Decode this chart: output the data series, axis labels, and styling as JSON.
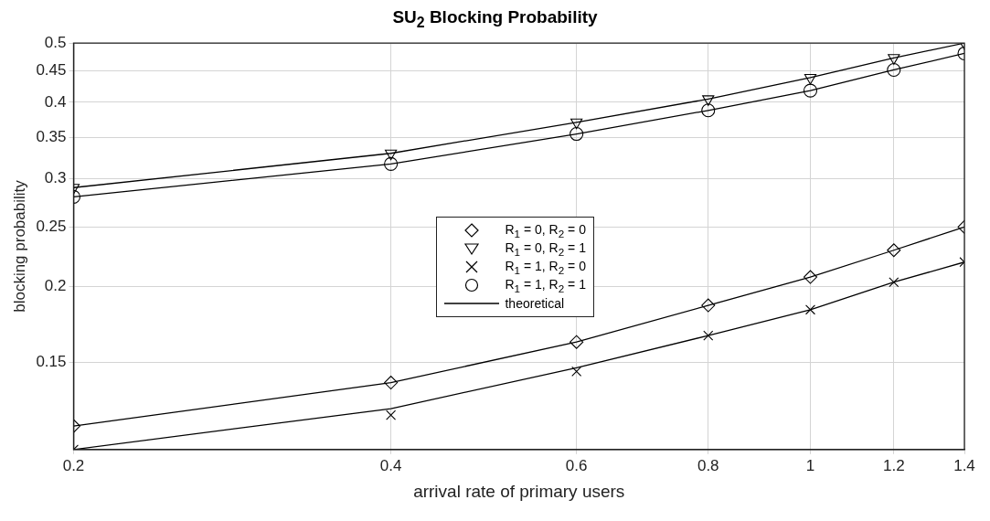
{
  "chart_data": {
    "type": "line",
    "title": "SU$_{2}$ Blocking Probability",
    "xlabel": "arrival rate of primary users",
    "ylabel": "blocking probability",
    "x": [
      0.2,
      0.4,
      0.6,
      0.8,
      1,
      1.2,
      1.4
    ],
    "series": [
      {
        "name": "R$_{1}$ = 0, R$_{2}$ = 0",
        "type": "scatter",
        "marker": "diamond",
        "color": "#000000",
        "values": [
          0.118,
          0.139,
          0.162,
          0.186,
          0.207,
          0.229,
          0.25
        ]
      },
      {
        "name": "R$_{1}$ = 0, R$_{2}$ = 1",
        "type": "scatter",
        "marker": "triangle",
        "color": "#000000",
        "values": [
          0.29,
          0.33,
          0.371,
          0.405,
          0.439,
          0.473,
          0.5
        ]
      },
      {
        "name": "R$_{1}$ = 1, R$_{2}$ = 0",
        "type": "scatter",
        "marker": "cross",
        "color": "#000000",
        "values": [
          0.108,
          0.123,
          0.145,
          0.166,
          0.183,
          0.203,
          0.219
        ]
      },
      {
        "name": "R$_{1}$ = 1, R$_{2}$ = 1",
        "type": "scatter",
        "marker": "circle",
        "color": "#000000",
        "values": [
          0.28,
          0.317,
          0.355,
          0.388,
          0.418,
          0.452,
          0.481
        ]
      },
      {
        "name": "theoretical",
        "marker": "none",
        "color": "#000000",
        "values": [
          0.118,
          0.139,
          0.162,
          0.186,
          0.207,
          0.229,
          0.25
        ]
      },
      {
        "marker": "none",
        "color": "#000000",
        "values": [
          0.29,
          0.33,
          0.371,
          0.405,
          0.439,
          0.473,
          0.5
        ]
      },
      {
        "marker": "none",
        "color": "#000000",
        "values": [
          0.108,
          0.126,
          0.147,
          0.166,
          0.183,
          0.203,
          0.219
        ]
      },
      {
        "marker": "none",
        "color": "#000000",
        "values": [
          0.28,
          0.317,
          0.355,
          0.388,
          0.418,
          0.452,
          0.481
        ]
      }
    ],
    "log": "xy",
    "xlim": [
      0.2,
      1.4
    ],
    "xticks": [
      0.2,
      0.4,
      0.6,
      0.8,
      1,
      1.2,
      1.4
    ],
    "ylim": [
      0.108,
      0.5
    ],
    "yticks": [
      0.15,
      0.2,
      0.25,
      0.3,
      0.35,
      0.4,
      0.45,
      0.5
    ],
    "grid": true,
    "legend": "center",
    "line_style": "solid"
  }
}
